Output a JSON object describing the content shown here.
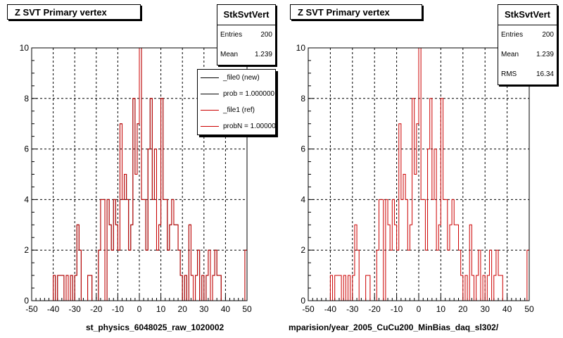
{
  "left_pad": {
    "title": "Z SVT Primary vertex",
    "stats": {
      "name": "StkSvtVert",
      "rows": [
        {
          "label": "Entries",
          "value": "200"
        },
        {
          "label": "Mean",
          "value": "1.239"
        }
      ]
    },
    "legend": [
      {
        "label": "_file0 (new)",
        "color": "#000000"
      },
      {
        "label": "prob = 1.000000",
        "color": "#000000"
      },
      {
        "label": "_file1 (ref)",
        "color": "#cc0000"
      },
      {
        "label": "probN = 1.000000",
        "color": "#cc0000"
      }
    ],
    "x_title": "st_physics_6048025_raw_1020002"
  },
  "right_pad": {
    "title": "Z SVT Primary vertex",
    "stats": {
      "name": "StkSvtVert",
      "rows": [
        {
          "label": "Entries",
          "value": "200"
        },
        {
          "label": "Mean",
          "value": "1.239"
        },
        {
          "label": "RMS",
          "value": "16.34"
        }
      ]
    },
    "x_title": "mparision/year_2005_CuCu200_MinBias_daq_sl302/"
  },
  "chart_data": [
    {
      "type": "bar",
      "title": "Z SVT Primary vertex",
      "xlim": [
        -50,
        50
      ],
      "ylim": [
        0,
        10
      ],
      "x_ticks": [
        "-50",
        "-40",
        "-30",
        "-20",
        "-10",
        "0",
        "10",
        "20",
        "30",
        "40",
        "50"
      ],
      "y_ticks": [
        "0",
        "2",
        "4",
        "6",
        "8",
        "10"
      ],
      "grid": true,
      "legend_position": "top-right",
      "bin_width": 1,
      "bin_start": -50,
      "series": [
        {
          "name": "_file0 (new)",
          "color": "#000000",
          "values": [
            0,
            0,
            0,
            0,
            0,
            0,
            0,
            0,
            0,
            0,
            1,
            0,
            1,
            1,
            1,
            0,
            1,
            0,
            1,
            0,
            1,
            3,
            2,
            0,
            0,
            0,
            1,
            1,
            0,
            0,
            0,
            2,
            4,
            4,
            0,
            4,
            3,
            2,
            4,
            3,
            2,
            7,
            4,
            5,
            4,
            2,
            3,
            8,
            5,
            7,
            10,
            4,
            4,
            2,
            6,
            8,
            4,
            6,
            2,
            3,
            8,
            4,
            4,
            2,
            3,
            4,
            3,
            3,
            2,
            1,
            0,
            1,
            0,
            3,
            1,
            0,
            1,
            2,
            0,
            1,
            0,
            1,
            2,
            0,
            1,
            2,
            1,
            1,
            0,
            0,
            0,
            0,
            0,
            0,
            0,
            0,
            0,
            0,
            0,
            2
          ]
        },
        {
          "name": "_file1 (ref)",
          "color": "#cc0000",
          "values": [
            0,
            0,
            0,
            0,
            0,
            0,
            0,
            0,
            0,
            0,
            1,
            0,
            1,
            1,
            1,
            0,
            1,
            0,
            1,
            0,
            1,
            3,
            2,
            0,
            0,
            0,
            1,
            1,
            0,
            0,
            0,
            2,
            4,
            4,
            0,
            4,
            3,
            2,
            4,
            3,
            2,
            7,
            4,
            5,
            4,
            2,
            3,
            8,
            5,
            7,
            10,
            4,
            4,
            2,
            6,
            8,
            4,
            6,
            2,
            3,
            8,
            4,
            4,
            2,
            3,
            4,
            3,
            3,
            2,
            1,
            0,
            1,
            0,
            3,
            1,
            0,
            1,
            2,
            0,
            1,
            0,
            1,
            2,
            0,
            1,
            2,
            1,
            1,
            0,
            0,
            0,
            0,
            0,
            0,
            0,
            0,
            0,
            0,
            0,
            2
          ]
        }
      ]
    },
    {
      "type": "bar",
      "title": "Z SVT Primary vertex",
      "xlim": [
        -50,
        50
      ],
      "ylim": [
        0,
        10
      ],
      "x_ticks": [
        "-50",
        "-40",
        "-30",
        "-20",
        "-10",
        "0",
        "10",
        "20",
        "30",
        "40",
        "50"
      ],
      "y_ticks": [
        "0",
        "2",
        "4",
        "6",
        "8",
        "10"
      ],
      "grid": true,
      "bin_width": 1,
      "bin_start": -50,
      "series": [
        {
          "color": "#cc0000",
          "values": [
            0,
            0,
            0,
            0,
            0,
            0,
            0,
            0,
            0,
            0,
            1,
            0,
            1,
            1,
            1,
            0,
            1,
            0,
            1,
            0,
            1,
            3,
            2,
            0,
            0,
            0,
            1,
            1,
            0,
            0,
            0,
            2,
            4,
            4,
            0,
            4,
            3,
            2,
            4,
            3,
            2,
            7,
            4,
            5,
            4,
            2,
            3,
            8,
            5,
            7,
            10,
            4,
            4,
            2,
            6,
            8,
            4,
            6,
            2,
            3,
            8,
            4,
            4,
            2,
            3,
            4,
            3,
            3,
            2,
            1,
            0,
            1,
            0,
            3,
            1,
            0,
            1,
            2,
            0,
            1,
            0,
            1,
            2,
            0,
            1,
            2,
            1,
            1,
            0,
            0,
            0,
            0,
            0,
            0,
            0,
            0,
            0,
            0,
            0,
            2
          ]
        }
      ]
    }
  ]
}
